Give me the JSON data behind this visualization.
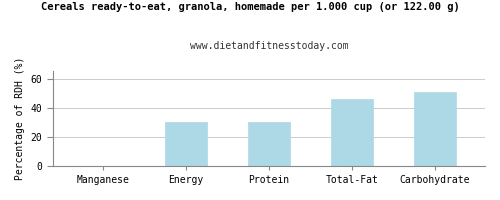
{
  "title_line1": "Cereals ready-to-eat, granola, homemade per 1.000 cup (or 122.00 g)",
  "title_line2": "www.dietandfitnesstoday.com",
  "ylabel": "Percentage of RDH (%)",
  "categories": [
    "Manganese",
    "Energy",
    "Protein",
    "Total-Fat",
    "Carbohydrate"
  ],
  "values": [
    0.3,
    30.5,
    30.5,
    46.0,
    51.0
  ],
  "bar_color": "#add8e6",
  "bar_edge_color": "#add8e6",
  "ylim": [
    0,
    65
  ],
  "yticks": [
    0,
    20,
    40,
    60
  ],
  "background_color": "#ffffff",
  "grid_color": "#cccccc",
  "title_fontsize": 7.5,
  "subtitle_fontsize": 7,
  "tick_fontsize": 7,
  "ylabel_fontsize": 7,
  "bar_width": 0.5
}
